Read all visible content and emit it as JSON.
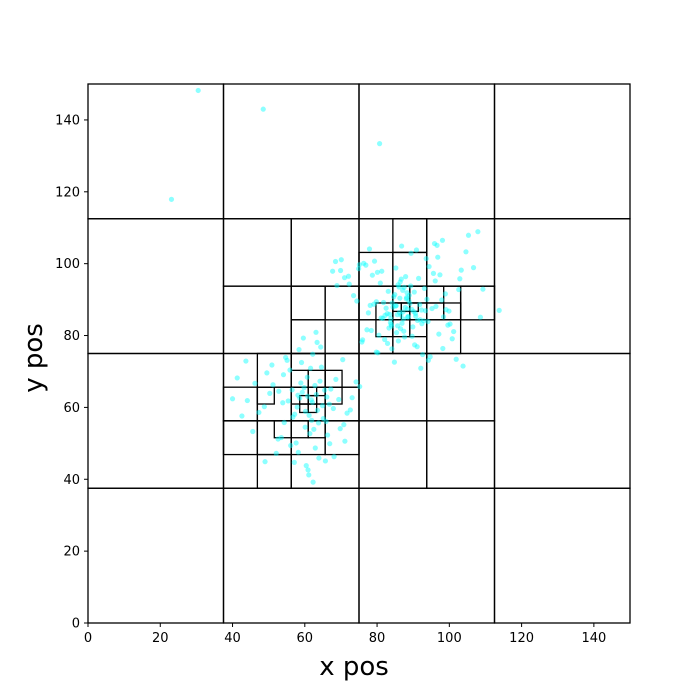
{
  "chart_data": {
    "type": "scatter",
    "title": "",
    "xlabel": "x pos",
    "ylabel": "y pos",
    "xlim": [
      0,
      150
    ],
    "ylim": [
      0,
      150
    ],
    "x_ticks": [
      0,
      20,
      40,
      60,
      80,
      100,
      120,
      140
    ],
    "y_ticks": [
      0,
      20,
      40,
      60,
      80,
      100,
      120,
      140
    ],
    "grid": false,
    "legend": "none",
    "point_color": "#00ffff",
    "cell_line_color": "#000000",
    "quadtree_cells": [
      [
        0,
        0,
        37.5,
        37.5
      ],
      [
        37.5,
        0,
        75,
        37.5
      ],
      [
        75,
        0,
        112.5,
        37.5
      ],
      [
        112.5,
        0,
        150,
        37.5
      ],
      [
        0,
        37.5,
        37.5,
        75
      ],
      [
        0,
        75,
        37.5,
        112.5
      ],
      [
        0,
        112.5,
        37.5,
        150
      ],
      [
        37.5,
        112.5,
        75,
        150
      ],
      [
        75,
        112.5,
        112.5,
        150
      ],
      [
        112.5,
        112.5,
        150,
        150
      ],
      [
        112.5,
        75,
        150,
        112.5
      ],
      [
        112.5,
        37.5,
        150,
        75
      ],
      [
        37.5,
        37.5,
        56.25,
        56.25
      ],
      [
        56.25,
        37.5,
        75,
        56.25
      ],
      [
        37.5,
        56.25,
        56.25,
        75
      ],
      [
        56.25,
        56.25,
        75,
        75
      ],
      [
        37.5,
        75,
        56.25,
        93.75
      ],
      [
        56.25,
        75,
        75,
        93.75
      ],
      [
        37.5,
        93.75,
        56.25,
        112.5
      ],
      [
        56.25,
        93.75,
        75,
        112.5
      ],
      [
        75,
        37.5,
        93.75,
        56.25
      ],
      [
        93.75,
        37.5,
        112.5,
        56.25
      ],
      [
        75,
        56.25,
        93.75,
        75
      ],
      [
        93.75,
        56.25,
        112.5,
        75
      ],
      [
        75,
        75,
        93.75,
        93.75
      ],
      [
        93.75,
        75,
        112.5,
        93.75
      ],
      [
        75,
        93.75,
        93.75,
        112.5
      ],
      [
        93.75,
        93.75,
        112.5,
        112.5
      ],
      [
        46.875,
        37.5,
        56.25,
        46.875
      ],
      [
        46.875,
        46.875,
        56.25,
        56.25
      ],
      [
        37.5,
        46.875,
        46.875,
        56.25
      ],
      [
        56.25,
        46.875,
        65.625,
        56.25
      ],
      [
        65.625,
        46.875,
        75,
        56.25
      ],
      [
        37.5,
        56.25,
        46.875,
        65.625
      ],
      [
        46.875,
        56.25,
        56.25,
        65.625
      ],
      [
        46.875,
        65.625,
        56.25,
        75
      ],
      [
        56.25,
        56.25,
        65.625,
        65.625
      ],
      [
        65.625,
        56.25,
        75,
        65.625
      ],
      [
        56.25,
        65.625,
        65.625,
        75
      ],
      [
        65.625,
        65.625,
        75,
        75
      ],
      [
        56.25,
        75,
        65.625,
        84.375
      ],
      [
        56.25,
        84.375,
        65.625,
        93.75
      ],
      [
        65.625,
        84.375,
        75,
        93.75
      ],
      [
        46.875,
        60.94,
        51.56,
        65.625
      ],
      [
        51.56,
        51.56,
        56.25,
        56.25
      ],
      [
        56.25,
        51.56,
        60.94,
        56.25
      ],
      [
        60.94,
        51.56,
        65.625,
        56.25
      ],
      [
        56.25,
        60.94,
        60.94,
        65.625
      ],
      [
        60.94,
        60.94,
        65.625,
        65.625
      ],
      [
        56.25,
        65.625,
        60.94,
        70.31
      ],
      [
        60.94,
        65.625,
        65.625,
        70.31
      ],
      [
        65.625,
        60.94,
        70.31,
        65.625
      ],
      [
        65.625,
        65.625,
        70.31,
        70.31
      ],
      [
        58.59,
        58.59,
        60.94,
        60.94
      ],
      [
        60.94,
        58.59,
        63.28,
        60.94
      ],
      [
        58.59,
        60.94,
        60.94,
        63.28
      ],
      [
        60.94,
        60.94,
        63.28,
        63.28
      ],
      [
        63.28,
        60.94,
        65.625,
        63.28
      ],
      [
        60.94,
        63.28,
        63.28,
        65.625
      ],
      [
        75,
        75,
        84.375,
        84.375
      ],
      [
        84.375,
        75,
        93.75,
        84.375
      ],
      [
        75,
        84.375,
        84.375,
        93.75
      ],
      [
        84.375,
        84.375,
        93.75,
        93.75
      ],
      [
        75,
        93.75,
        84.375,
        103.125
      ],
      [
        84.375,
        93.75,
        93.75,
        103.125
      ],
      [
        84.375,
        103.125,
        93.75,
        112.5
      ],
      [
        93.75,
        84.375,
        103.125,
        93.75
      ],
      [
        93.75,
        75,
        103.125,
        84.375
      ],
      [
        103.125,
        84.375,
        112.5,
        93.75
      ],
      [
        79.69,
        84.375,
        84.375,
        89.06
      ],
      [
        79.69,
        79.69,
        84.375,
        84.375
      ],
      [
        84.375,
        79.69,
        89.06,
        84.375
      ],
      [
        89.06,
        79.69,
        93.75,
        84.375
      ],
      [
        84.375,
        84.375,
        89.06,
        89.06
      ],
      [
        89.06,
        84.375,
        93.75,
        89.06
      ],
      [
        84.375,
        89.06,
        89.06,
        93.75
      ],
      [
        89.06,
        89.06,
        93.75,
        93.75
      ],
      [
        93.75,
        84.375,
        98.44,
        89.06
      ],
      [
        93.75,
        89.06,
        98.44,
        93.75
      ],
      [
        98.44,
        84.375,
        103.125,
        89.06
      ],
      [
        86.72,
        86.72,
        89.06,
        89.06
      ],
      [
        84.375,
        86.72,
        86.72,
        89.06
      ],
      [
        86.72,
        84.375,
        89.06,
        86.72
      ],
      [
        89.06,
        86.72,
        91.41,
        89.06
      ]
    ],
    "series": [
      {
        "x": [
          30.5,
          48.5,
          80.7,
          23.1,
          113.8,
          109.3,
          103.3,
          98.1,
          49.0,
          40.0,
          68.5,
          72.1,
          67.7,
          79.8,
          76.0,
          70.5,
          62.1,
          63.5,
          60.8,
          64.9,
          61.2,
          59.3,
          66.1,
          62.8,
          57.9,
          63.8,
          60.2,
          65.5,
          58.6,
          61.9,
          64.2,
          59.8,
          62.5,
          66.8,
          57.2,
          60.7,
          63.2,
          61.4,
          65.1,
          58.9,
          55.4,
          52.8,
          56.7,
          54.1,
          67.9,
          69.4,
          70.8,
          53.5,
          51.2,
          55.9,
          68.6,
          71.7,
          50.3,
          48.8,
          57.6,
          64.6,
          66.3,
          59.1,
          62.9,
          60.1,
          56.1,
          54.7,
          65.9,
          67.2,
          53.9,
          58.2,
          62.2,
          63.9,
          61.6,
          60.4,
          47.3,
          45.6,
          73.1,
          74.2,
          52.1,
          49.5,
          66.9,
          58.4,
          61.1,
          64.4,
          55.1,
          57.1,
          63.4,
          60.9,
          69.8,
          46.2,
          44.1,
          42.6,
          72.6,
          71.1,
          50.9,
          54.3,
          68.1,
          59.6,
          62.3,
          56.5,
          41.3,
          43.7,
          75.2,
          52.6,
          63.1,
          65.7,
          61.8,
          58.1,
          86.2,
          88.5,
          85.1,
          87.3,
          89.6,
          84.2,
          86.9,
          90.1,
          83.5,
          88.1,
          85.7,
          87.8,
          91.2,
          84.9,
          86.5,
          89.1,
          82.8,
          87.1,
          85.4,
          88.8,
          90.7,
          83.9,
          86.1,
          92.3,
          81.6,
          87.6,
          84.6,
          89.9,
          91.8,
          80.9,
          93.4,
          85.9,
          88.3,
          82.2,
          86.7,
          94.1,
          79.8,
          90.4,
          83.1,
          95.2,
          78.7,
          87.4,
          92.9,
          81.3,
          96.3,
          84.1,
          89.3,
          77.6,
          97.1,
          85.2,
          93.8,
          80.2,
          98.4,
          86.4,
          76.9,
          99.6,
          82.5,
          94.7,
          88.9,
          79.3,
          100.8,
          91.5,
          83.7,
          96.8,
          78.1,
          101.9,
          87.9,
          75.8,
          97.9,
          89.4,
          81.1,
          102.6,
          84.8,
          95.6,
          77.2,
          99.1,
          90.9,
          82.9,
          93.1,
          85.6,
          88.2,
          74.9,
          103.8,
          80.5,
          96.1,
          86.8,
          91.1,
          79.1,
          94.4,
          83.3,
          98.9,
          87.2,
          92.6,
          76.3,
          100.2,
          85.8,
          89.7,
          81.8,
          95.9,
          84.4,
          90.3,
          78.4,
          97.4,
          88.6,
          82.1,
          93.6,
          86.3,
          91.9,
          80.1,
          99.9,
          87.5,
          84.0,
          72.3,
          73.5,
          71.0,
          104.6,
          105.3,
          106.7,
          101.2,
          96.6,
          94.2,
          98.2,
          92.1,
          77.9,
          75.1,
          69.9,
          68.9,
          107.9,
          102.9,
          74.4,
          108.6,
          70.1,
          90.6,
          88.4,
          86.6,
          85.3,
          83.8,
          92.4
        ],
        "y": [
          148.2,
          143.0,
          133.4,
          117.9,
          87.0,
          92.9,
          98.2,
          106.5,
          44.9,
          62.4,
          100.6,
          96.5,
          97.9,
          75.4,
          78.8,
          73.3,
          61.4,
          59.2,
          63.1,
          60.5,
          57.8,
          64.2,
          62.9,
          66.1,
          60.1,
          55.7,
          58.9,
          64.8,
          62.6,
          56.4,
          67.3,
          65.5,
          53.9,
          60.9,
          58.1,
          68.4,
          63.6,
          52.7,
          56.9,
          66.8,
          61.8,
          64.5,
          57.3,
          69.1,
          59.7,
          62.2,
          55.2,
          51.6,
          66.3,
          70.4,
          67.8,
          58.4,
          63.9,
          60.2,
          50.1,
          71.2,
          52.3,
          72.5,
          48.7,
          54.5,
          49.4,
          73.9,
          56.1,
          65.1,
          61.3,
          47.5,
          74.8,
          45.9,
          70.9,
          43.8,
          58.6,
          53.3,
          62.7,
          67.1,
          47.2,
          69.6,
          49.9,
          76.1,
          41.2,
          76.8,
          73.1,
          44.7,
          78.1,
          42.6,
          54.1,
          66.7,
          61.9,
          57.6,
          59.3,
          50.6,
          71.8,
          55.8,
          46.3,
          79.3,
          39.2,
          64.9,
          68.2,
          72.9,
          65.8,
          51.2,
          80.9,
          45.1,
          62.1,
          63.4,
          86.4,
          85.1,
          88.2,
          84.6,
          87.3,
          89.1,
          83.4,
          86.7,
          85.9,
          90.2,
          82.7,
          87.8,
          84.2,
          91.4,
          81.9,
          88.9,
          86.1,
          92.6,
          80.8,
          89.7,
          85.4,
          83.1,
          93.5,
          87.1,
          84.8,
          79.6,
          90.8,
          82.4,
          88.6,
          94.6,
          86.9,
          78.5,
          91.9,
          85.6,
          95.7,
          83.9,
          89.4,
          77.4,
          92.3,
          87.5,
          96.8,
          81.2,
          84.1,
          97.9,
          88.1,
          76.3,
          93.8,
          86.3,
          80.4,
          98.8,
          90.1,
          75.2,
          85.2,
          94.9,
          99.6,
          82.9,
          87.6,
          74.1,
          91.2,
          100.7,
          79.1,
          95.9,
          83.6,
          101.8,
          88.4,
          73.4,
          96.4,
          78.2,
          89.9,
          102.9,
          84.9,
          92.8,
          72.6,
          97.3,
          81.6,
          87.2,
          103.8,
          77.8,
          93.1,
          85.8,
          90.6,
          98.6,
          71.5,
          80.1,
          95.2,
          104.9,
          76.9,
          88.7,
          99.2,
          82.1,
          91.6,
          86.6,
          74.7,
          100.1,
          83.2,
          94.1,
          79.8,
          89.2,
          105.6,
          87.9,
          92.1,
          81.4,
          96.9,
          85.3,
          78.9,
          101.4,
          90.4,
          84.4,
          97.6,
          86.8,
          93.4,
          82.6,
          94.3,
          91.1,
          96.1,
          103.3,
          107.9,
          98.9,
          81.1,
          105.1,
          73.1,
          76.4,
          70.9,
          104.1,
          99.7,
          98.1,
          93.9,
          108.9,
          95.8,
          89.6,
          85.1,
          101.1,
          86.2,
          87.4,
          85.7,
          88.3,
          84.7,
          83.3
        ]
      }
    ]
  }
}
